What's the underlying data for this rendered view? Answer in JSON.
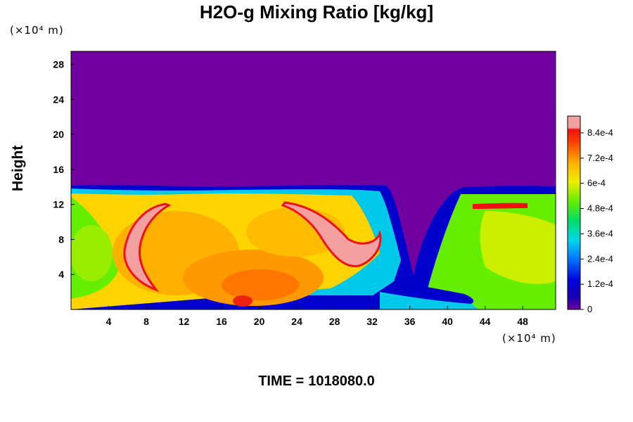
{
  "chart_data": {
    "type": "heatmap",
    "title": "H2O-g Mixing Ratio [kg/kg]",
    "ylabel": "Height",
    "x_unit": "(×10⁴ m)",
    "y_unit": "(×10⁴ m)",
    "x_ticks": [
      "4",
      "8",
      "12",
      "16",
      "20",
      "24",
      "28",
      "32",
      "36",
      "40",
      "44",
      "48"
    ],
    "y_ticks": [
      "4",
      "8",
      "12",
      "16",
      "20",
      "24",
      "28"
    ],
    "colorbar": {
      "labels": [
        "0",
        "1.2e-4",
        "2.4e-4",
        "3.6e-4",
        "4.8e-4",
        "6e-4",
        "7.2e-4",
        "8.4e-4"
      ],
      "range": [
        0,
        0.00092
      ],
      "colors": [
        "#7000a0",
        "#0000cc",
        "#0066ff",
        "#00ccee",
        "#00dd66",
        "#66ee00",
        "#ddee00",
        "#ffcc00",
        "#ff9900",
        "#ff5500",
        "#ee1111",
        "#f4a0a0"
      ]
    },
    "xlim": [
      0,
      51.5
    ],
    "ylim": [
      0,
      29.5
    ],
    "time_label": "TIME =",
    "time_value": "1018080.0",
    "colors": {
      "background": "#7000a0",
      "moist_layer": "#ffd400",
      "core": "#ff9900",
      "edge_dry": "#0000cc",
      "peak": "#f4a0a0"
    }
  }
}
